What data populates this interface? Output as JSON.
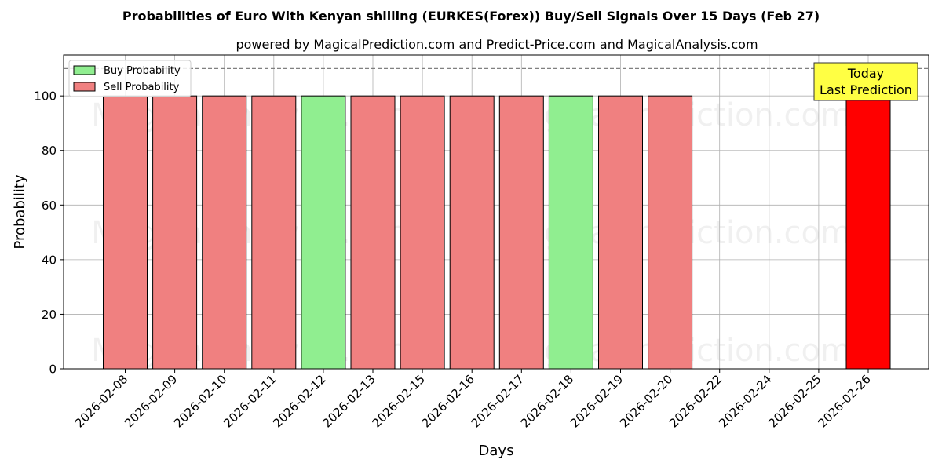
{
  "chart_data": {
    "type": "bar",
    "title": "Probabilities of Euro With Kenyan shilling (EURKES(Forex)) Buy/Sell Signals Over 15 Days (Feb 27)",
    "subtitle": "powered by MagicalPrediction.com and Predict-Price.com and MagicalAnalysis.com",
    "xlabel": "Days",
    "ylabel": "Probability",
    "ylim": [
      0,
      115
    ],
    "yticks": [
      0,
      20,
      40,
      60,
      80,
      100
    ],
    "grid": true,
    "legend_position": "top-left",
    "reference_line": {
      "value": 110,
      "style": "dashed",
      "color": "#808080"
    },
    "categories": [
      "2026-02-08",
      "2026-02-09",
      "2026-02-10",
      "2026-02-11",
      "2026-02-12",
      "2026-02-13",
      "2026-02-15",
      "2026-02-16",
      "2026-02-17",
      "2026-02-18",
      "2026-02-19",
      "2026-02-20",
      "2026-02-22",
      "2026-02-24",
      "2026-02-25",
      "2026-02-26"
    ],
    "series": [
      {
        "name": "Buy Probability",
        "color": "#90ee90",
        "values": [
          0,
          0,
          0,
          0,
          100,
          0,
          0,
          0,
          0,
          100,
          0,
          0,
          0,
          0,
          0,
          0
        ]
      },
      {
        "name": "Sell Probability",
        "color": "#f08080",
        "values": [
          100,
          100,
          100,
          100,
          0,
          100,
          100,
          100,
          100,
          0,
          100,
          100,
          0,
          0,
          0,
          100
        ]
      }
    ],
    "highlight": {
      "category": "2026-02-26",
      "color": "#ff0000"
    },
    "annotation": {
      "category": "2026-02-26",
      "lines": [
        "Today",
        "Last Prediction"
      ],
      "background": "#ffff44"
    },
    "watermark": "MagicalAnalysis.com        MagicalPrediction.com"
  }
}
